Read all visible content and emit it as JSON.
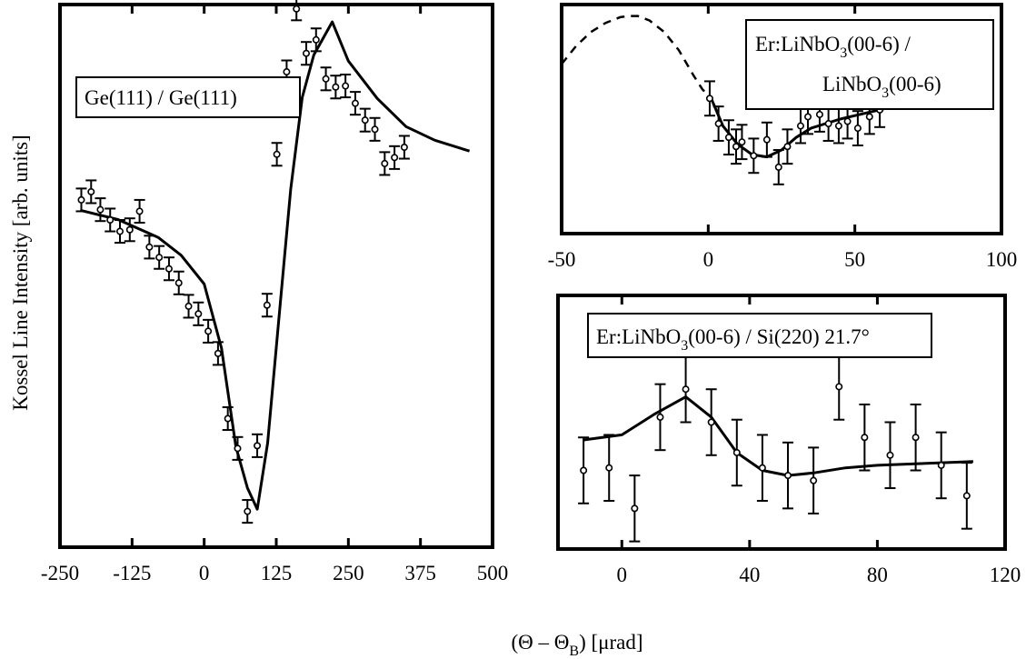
{
  "figure": {
    "ylabel": "Kossel Line Intensity [arb. units]",
    "xlabel_prefix": "(Θ – Θ",
    "xlabel_sub": "B",
    "xlabel_suffix": ") [μrad]"
  },
  "chart_data": [
    {
      "type": "scatter",
      "title": "Ge(111) / Ge(111)",
      "xlim": [
        -250,
        500
      ],
      "ylim": [
        0,
        1
      ],
      "xticks": [
        -250,
        -125,
        0,
        125,
        250,
        375,
        500
      ],
      "tick_labels": [
        "-250",
        "-125",
        "0",
        "125",
        "250",
        "375",
        "500"
      ],
      "legend": {
        "lines": [
          "Ge(111) / Ge(111)"
        ],
        "position": "top-left"
      },
      "points": [
        {
          "x": -213,
          "y": 0.64,
          "err": 0.021
        },
        {
          "x": -196,
          "y": 0.655,
          "err": 0.021
        },
        {
          "x": -180,
          "y": 0.622,
          "err": 0.021
        },
        {
          "x": -163,
          "y": 0.603,
          "err": 0.021
        },
        {
          "x": -146,
          "y": 0.582,
          "err": 0.021
        },
        {
          "x": -129,
          "y": 0.585,
          "err": 0.021
        },
        {
          "x": -112,
          "y": 0.619,
          "err": 0.021
        },
        {
          "x": -95,
          "y": 0.553,
          "err": 0.021
        },
        {
          "x": -78,
          "y": 0.534,
          "err": 0.021
        },
        {
          "x": -61,
          "y": 0.513,
          "err": 0.021
        },
        {
          "x": -44,
          "y": 0.487,
          "err": 0.021
        },
        {
          "x": -27,
          "y": 0.444,
          "err": 0.021
        },
        {
          "x": -10,
          "y": 0.43,
          "err": 0.021
        },
        {
          "x": 7,
          "y": 0.398,
          "err": 0.021
        },
        {
          "x": 24,
          "y": 0.357,
          "err": 0.021
        },
        {
          "x": 41,
          "y": 0.237,
          "err": 0.021
        },
        {
          "x": 58,
          "y": 0.182,
          "err": 0.021
        },
        {
          "x": 75,
          "y": 0.066,
          "err": 0.021
        },
        {
          "x": 92,
          "y": 0.187,
          "err": 0.021
        },
        {
          "x": 109,
          "y": 0.446,
          "err": 0.021
        },
        {
          "x": 126,
          "y": 0.724,
          "err": 0.021
        },
        {
          "x": 143,
          "y": 0.876,
          "err": 0.021
        },
        {
          "x": 160,
          "y": 0.992,
          "err": 0.021
        },
        {
          "x": 177,
          "y": 0.91,
          "err": 0.021
        },
        {
          "x": 194,
          "y": 0.935,
          "err": 0.021
        },
        {
          "x": 211,
          "y": 0.863,
          "err": 0.021
        },
        {
          "x": 228,
          "y": 0.848,
          "err": 0.021
        },
        {
          "x": 245,
          "y": 0.85,
          "err": 0.021
        },
        {
          "x": 262,
          "y": 0.818,
          "err": 0.021
        },
        {
          "x": 279,
          "y": 0.787,
          "err": 0.021
        },
        {
          "x": 296,
          "y": 0.77,
          "err": 0.021
        },
        {
          "x": 313,
          "y": 0.707,
          "err": 0.021
        },
        {
          "x": 330,
          "y": 0.718,
          "err": 0.021
        },
        {
          "x": 347,
          "y": 0.737,
          "err": 0.021
        }
      ],
      "fit": {
        "x": [
          -215,
          -150,
          -80,
          -40,
          0,
          30,
          55,
          75,
          92,
          110,
          130,
          150,
          170,
          190,
          222,
          250,
          300,
          350,
          400,
          460
        ],
        "y": [
          0.621,
          0.604,
          0.571,
          0.538,
          0.485,
          0.367,
          0.185,
          0.109,
          0.07,
          0.192,
          0.427,
          0.66,
          0.829,
          0.907,
          0.968,
          0.896,
          0.827,
          0.775,
          0.75,
          0.73
        ]
      }
    },
    {
      "type": "scatter",
      "title": "Er:LiNbO3(00-6) / LiNbO3(00-6)",
      "xlim": [
        -50,
        100
      ],
      "ylim": [
        0,
        1
      ],
      "xticks": [
        -50,
        0,
        50,
        100
      ],
      "tick_labels": [
        "-50",
        "0",
        "50",
        "100"
      ],
      "legend": {
        "lines": [
          "Er:LiNbO3(00-6) /",
          "LiNbO3(00-6)"
        ],
        "position": "top-right"
      },
      "points": [
        {
          "x": 0.5,
          "y": 0.59,
          "err": 0.075
        },
        {
          "x": 3.5,
          "y": 0.48,
          "err": 0.075
        },
        {
          "x": 7,
          "y": 0.42,
          "err": 0.075
        },
        {
          "x": 9.5,
          "y": 0.38,
          "err": 0.075
        },
        {
          "x": 11.5,
          "y": 0.4,
          "err": 0.075
        },
        {
          "x": 15.5,
          "y": 0.34,
          "err": 0.075
        },
        {
          "x": 20,
          "y": 0.41,
          "err": 0.075
        },
        {
          "x": 24,
          "y": 0.29,
          "err": 0.075
        },
        {
          "x": 27,
          "y": 0.38,
          "err": 0.075
        },
        {
          "x": 31.5,
          "y": 0.47,
          "err": 0.075
        },
        {
          "x": 34,
          "y": 0.51,
          "err": 0.075
        },
        {
          "x": 38,
          "y": 0.52,
          "err": 0.075
        },
        {
          "x": 41,
          "y": 0.48,
          "err": 0.075
        },
        {
          "x": 44.5,
          "y": 0.47,
          "err": 0.075
        },
        {
          "x": 47.5,
          "y": 0.49,
          "err": 0.075
        },
        {
          "x": 51,
          "y": 0.46,
          "err": 0.075
        },
        {
          "x": 55,
          "y": 0.51,
          "err": 0.075
        },
        {
          "x": 58.5,
          "y": 0.54,
          "err": 0.075
        }
      ],
      "fit": {
        "x": [
          1,
          5,
          10,
          15,
          20,
          25,
          30,
          35,
          40,
          45,
          50,
          55,
          60,
          65
        ],
        "y": [
          0.59,
          0.47,
          0.39,
          0.345,
          0.335,
          0.365,
          0.42,
          0.46,
          0.48,
          0.5,
          0.515,
          0.53,
          0.545,
          0.555
        ]
      },
      "dashed_fit": [
        {
          "x": [
            -50,
            -45,
            -40,
            -35,
            -30,
            -27,
            -24,
            -20,
            -15,
            -10,
            -5,
            -2,
            1
          ],
          "y": [
            0.74,
            0.82,
            0.88,
            0.92,
            0.945,
            0.95,
            0.95,
            0.93,
            0.88,
            0.8,
            0.69,
            0.63,
            0.59
          ]
        },
        {
          "x": [
            65,
            75,
            85,
            95,
            100
          ],
          "y": [
            0.555,
            0.58,
            0.595,
            0.605,
            0.608
          ]
        }
      ]
    },
    {
      "type": "scatter",
      "title": "Er:LiNbO3(00-6) / Si(220) 21.7°",
      "xlim": [
        -20,
        120
      ],
      "ylim": [
        0,
        1
      ],
      "xticks": [
        0,
        40,
        80,
        120
      ],
      "tick_labels": [
        "0",
        "40",
        "80",
        "120"
      ],
      "legend": {
        "lines": [
          "Er:LiNbO3(00-6) / Si(220) 21.7°"
        ],
        "position": "top-center"
      },
      "points": [
        {
          "x": -12,
          "y": 0.31,
          "err": 0.13
        },
        {
          "x": -4,
          "y": 0.32,
          "err": 0.13
        },
        {
          "x": 4,
          "y": 0.16,
          "err": 0.13
        },
        {
          "x": 12,
          "y": 0.52,
          "err": 0.13
        },
        {
          "x": 20,
          "y": 0.63,
          "err": 0.13
        },
        {
          "x": 28,
          "y": 0.5,
          "err": 0.13
        },
        {
          "x": 36,
          "y": 0.38,
          "err": 0.13
        },
        {
          "x": 44,
          "y": 0.32,
          "err": 0.13
        },
        {
          "x": 52,
          "y": 0.29,
          "err": 0.13
        },
        {
          "x": 60,
          "y": 0.27,
          "err": 0.13
        },
        {
          "x": 68,
          "y": 0.64,
          "err": 0.13
        },
        {
          "x": 76,
          "y": 0.44,
          "err": 0.13
        },
        {
          "x": 84,
          "y": 0.37,
          "err": 0.13
        },
        {
          "x": 92,
          "y": 0.44,
          "err": 0.13
        },
        {
          "x": 100,
          "y": 0.33,
          "err": 0.13
        },
        {
          "x": 108,
          "y": 0.21,
          "err": 0.13
        }
      ],
      "fit": {
        "x": [
          -12,
          0,
          10,
          20,
          28,
          36,
          44,
          52,
          60,
          70,
          80,
          90,
          100,
          110
        ],
        "y": [
          0.43,
          0.45,
          0.53,
          0.6,
          0.52,
          0.38,
          0.31,
          0.29,
          0.3,
          0.32,
          0.33,
          0.335,
          0.34,
          0.345
        ]
      }
    }
  ]
}
